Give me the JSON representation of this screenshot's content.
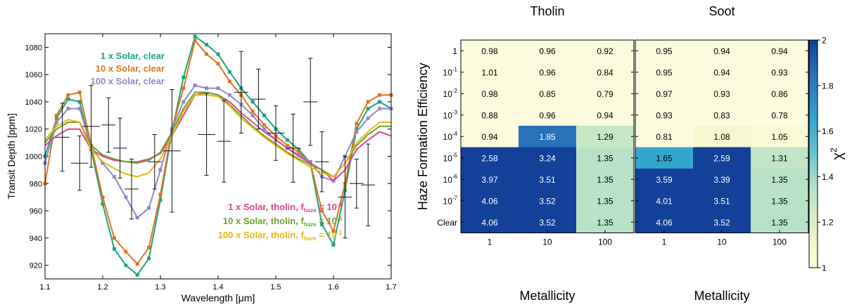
{
  "chart_data": [
    {
      "type": "line",
      "xlabel": "Wavelength [μm]",
      "ylabel": "Transit Depth [ppm]",
      "xlim": [
        1.1,
        1.7
      ],
      "ylim": [
        910,
        1090
      ],
      "xticks": [
        "1.1",
        "1.2",
        "1.3",
        "1.4",
        "1.5",
        "1.6",
        "1.7"
      ],
      "yticks": [
        "920",
        "940",
        "960",
        "980",
        "1000",
        "1020",
        "1040",
        "1060",
        "1080"
      ],
      "x": [
        1.1,
        1.12,
        1.14,
        1.16,
        1.18,
        1.2,
        1.22,
        1.24,
        1.26,
        1.28,
        1.3,
        1.32,
        1.34,
        1.36,
        1.38,
        1.4,
        1.42,
        1.44,
        1.46,
        1.48,
        1.5,
        1.52,
        1.54,
        1.56,
        1.58,
        1.6,
        1.62,
        1.64,
        1.66,
        1.68,
        1.7
      ],
      "legend_top": [
        {
          "text": "1 x Solar, clear",
          "color": "#1ba385"
        },
        {
          "text": "10 x Solar, clear",
          "color": "#e0761b"
        },
        {
          "text": "100 x Solar, clear",
          "color": "#8d89c6"
        }
      ],
      "legend_bottom": [
        {
          "text": "1 x Solar, tholin, f",
          "sub": "haze",
          "eq": " = 10",
          "sup": "-4",
          "color": "#e2438f"
        },
        {
          "text": "10 x Solar, tholin, f",
          "sub": "haze",
          "eq": " = 10",
          "sup": "-3",
          "color": "#6ba234"
        },
        {
          "text": "100 x Solar, tholin, f",
          "sub": "haze",
          "eq": " = 10",
          "sup": "-3",
          "color": "#e5b710"
        }
      ],
      "series": [
        {
          "name": "1 x Solar, clear",
          "color": "#1ba385",
          "markers": true,
          "values": [
            1000,
            1028,
            1042,
            1040,
            1005,
            965,
            932,
            920,
            913,
            925,
            968,
            1018,
            1058,
            1088,
            1082,
            1075,
            1062,
            1050,
            1040,
            1030,
            1020,
            1012,
            1005,
            995,
            950,
            935,
            975,
            1020,
            1035,
            1040,
            1035
          ]
        },
        {
          "name": "10 x Solar, clear",
          "color": "#e0761b",
          "markers": true,
          "values": [
            980,
            1030,
            1045,
            1047,
            1008,
            970,
            940,
            930,
            921,
            933,
            972,
            1020,
            1050,
            1085,
            1075,
            1068,
            1055,
            1045,
            1033,
            1023,
            1015,
            1008,
            1003,
            995,
            960,
            945,
            980,
            1024,
            1040,
            1045,
            1045
          ]
        },
        {
          "name": "100 x Solar, clear",
          "color": "#8d89c6",
          "markers": true,
          "values": [
            995,
            1025,
            1035,
            1035,
            1007,
            995,
            985,
            970,
            955,
            962,
            990,
            1020,
            1040,
            1052,
            1050,
            1050,
            1045,
            1038,
            1030,
            1020,
            1012,
            1006,
            1001,
            996,
            985,
            982,
            1000,
            1018,
            1028,
            1035,
            1035
          ]
        },
        {
          "name": "1 x Solar, tholin, f_haze = 10^-4",
          "color": "#e2438f",
          "markers": false,
          "values": [
            1008,
            1015,
            1020,
            1020,
            1005,
            1000,
            997,
            996,
            996,
            998,
            1002,
            1015,
            1030,
            1045,
            1047,
            1045,
            1040,
            1032,
            1025,
            1018,
            1012,
            1006,
            1000,
            995,
            990,
            982,
            990,
            1005,
            1012,
            1018,
            1015
          ]
        },
        {
          "name": "10 x Solar, tholin, f_haze = 10^-3",
          "color": "#6ba234",
          "markers": false,
          "values": [
            1010,
            1020,
            1025,
            1025,
            1008,
            1001,
            998,
            996,
            995,
            997,
            1003,
            1018,
            1035,
            1047,
            1047,
            1045,
            1038,
            1030,
            1022,
            1015,
            1009,
            1003,
            998,
            994,
            990,
            985,
            995,
            1008,
            1016,
            1022,
            1022
          ]
        },
        {
          "name": "100 x Solar, tholin, f_haze = 10^-3",
          "color": "#e5b710",
          "markers": false,
          "values": [
            1012,
            1022,
            1027,
            1025,
            1005,
            996,
            991,
            987,
            985,
            988,
            998,
            1015,
            1033,
            1045,
            1045,
            1044,
            1037,
            1028,
            1021,
            1014,
            1008,
            1002,
            997,
            992,
            988,
            985,
            995,
            1010,
            1018,
            1025,
            1025
          ]
        }
      ],
      "observations": [
        {
          "x": 1.13,
          "y": 1014,
          "xerr": 0.012,
          "yerr": 25
        },
        {
          "x": 1.16,
          "y": 995,
          "xerr": 0.015,
          "yerr": 20
        },
        {
          "x": 1.18,
          "y": 1022,
          "xerr": 0.015,
          "yerr": 30
        },
        {
          "x": 1.21,
          "y": 1023,
          "xerr": 0.012,
          "yerr": 20
        },
        {
          "x": 1.23,
          "y": 1006,
          "xerr": 0.012,
          "yerr": 22
        },
        {
          "x": 1.25,
          "y": 976,
          "xerr": 0.012,
          "yerr": 22
        },
        {
          "x": 1.29,
          "y": 996,
          "xerr": 0.012,
          "yerr": 20
        },
        {
          "x": 1.32,
          "y": 1004,
          "xerr": 0.015,
          "yerr": 45
        },
        {
          "x": 1.38,
          "y": 1016,
          "xerr": 0.015,
          "yerr": 30
        },
        {
          "x": 1.41,
          "y": 1011,
          "xerr": 0.012,
          "yerr": 30
        },
        {
          "x": 1.44,
          "y": 1047,
          "xerr": 0.012,
          "yerr": 30
        },
        {
          "x": 1.47,
          "y": 1042,
          "xerr": 0.012,
          "yerr": 22
        },
        {
          "x": 1.5,
          "y": 1017,
          "xerr": 0.015,
          "yerr": 20
        },
        {
          "x": 1.53,
          "y": 1006,
          "xerr": 0.012,
          "yerr": 25
        },
        {
          "x": 1.56,
          "y": 1040,
          "xerr": 0.012,
          "yerr": 32
        },
        {
          "x": 1.58,
          "y": 996,
          "xerr": 0.012,
          "yerr": 22
        },
        {
          "x": 1.62,
          "y": 970,
          "xerr": 0.012,
          "yerr": 30
        },
        {
          "x": 1.64,
          "y": 980,
          "xerr": 0.012,
          "yerr": 18
        },
        {
          "x": 1.66,
          "y": 979,
          "xerr": 0.012,
          "yerr": 30
        }
      ]
    },
    {
      "type": "heatmap",
      "ylabel": "Haze Formation Efficiency",
      "xlabel": "Metallicity",
      "rows": [
        {
          "base": "",
          "exp": "",
          "label": "1"
        },
        {
          "base": "10",
          "exp": "-1",
          "label": ""
        },
        {
          "base": "10",
          "exp": "-2",
          "label": ""
        },
        {
          "base": "10",
          "exp": "-3",
          "label": ""
        },
        {
          "base": "10",
          "exp": "-4",
          "label": ""
        },
        {
          "base": "10",
          "exp": "-5",
          "label": ""
        },
        {
          "base": "10",
          "exp": "-6",
          "label": ""
        },
        {
          "base": "10",
          "exp": "-7",
          "label": ""
        },
        {
          "base": "",
          "exp": "",
          "label": "Clear"
        }
      ],
      "columns": [
        "1",
        "10",
        "100"
      ],
      "colorbar": {
        "label": "χ",
        "label_sup": "2",
        "min": 1,
        "max": 2,
        "ticks": [
          "1",
          "1.2",
          "1.4",
          "1.6",
          "1.8",
          "2"
        ]
      },
      "panels": [
        {
          "title": "Tholin",
          "values": [
            [
              0.98,
              0.96,
              0.92
            ],
            [
              1.01,
              0.96,
              0.84
            ],
            [
              0.98,
              0.85,
              0.79
            ],
            [
              0.88,
              0.96,
              0.94
            ],
            [
              0.94,
              1.85,
              1.29
            ],
            [
              2.58,
              3.24,
              1.35
            ],
            [
              3.97,
              3.51,
              1.35
            ],
            [
              4.06,
              3.52,
              1.35
            ],
            [
              4.06,
              3.52,
              1.35
            ]
          ]
        },
        {
          "title": "Soot",
          "values": [
            [
              0.95,
              0.94,
              0.94
            ],
            [
              0.95,
              0.94,
              0.93
            ],
            [
              0.97,
              0.93,
              0.86
            ],
            [
              0.93,
              0.83,
              0.78
            ],
            [
              0.81,
              1.08,
              1.05
            ],
            [
              1.65,
              2.59,
              1.31
            ],
            [
              3.59,
              3.39,
              1.35
            ],
            [
              4.01,
              3.51,
              1.35
            ],
            [
              4.06,
              3.52,
              1.35
            ]
          ]
        }
      ]
    }
  ]
}
